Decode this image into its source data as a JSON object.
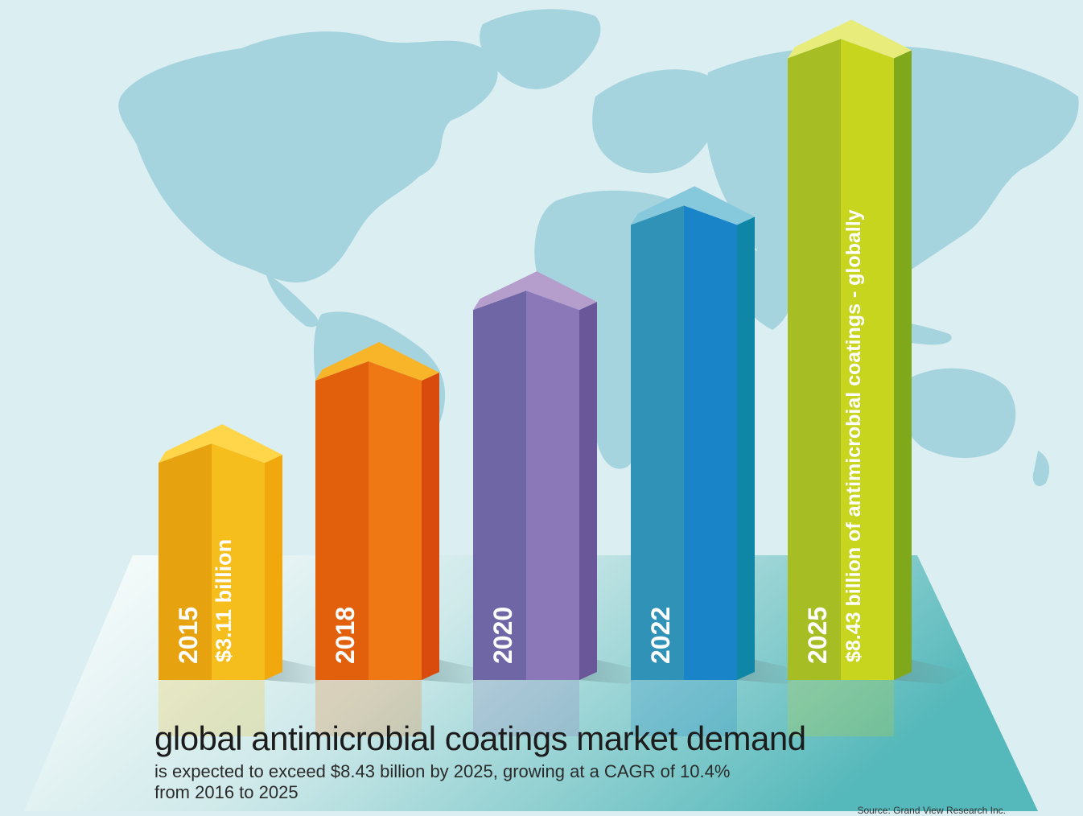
{
  "chart_data": {
    "type": "bar",
    "categories": [
      "2015",
      "2018",
      "2020",
      "2022",
      "2025"
    ],
    "values": [
      3.11,
      4.19,
      5.12,
      6.24,
      8.43
    ],
    "value_unit": "billion USD",
    "bar_labels": [
      "$3.11 billion",
      "",
      "",
      "",
      "$8.43 billion of antimicrobial coatings - globally"
    ],
    "colors": [
      {
        "front_left": "#e7a30f",
        "front_right": "#f6be1c",
        "side": "#f0a80c",
        "top": "#ffd64a"
      },
      {
        "front_left": "#e25f0c",
        "front_right": "#f07814",
        "side": "#d94b0d",
        "top": "#f8b52a"
      },
      {
        "front_left": "#6f66a6",
        "front_right": "#8b78b8",
        "side": "#6a5799",
        "top": "#b59dcc"
      },
      {
        "front_left": "#2f92b6",
        "front_right": "#1a84c8",
        "side": "#0f86a6",
        "top": "#86c8dc"
      },
      {
        "front_left": "#a6bd24",
        "front_right": "#c7d51e",
        "side": "#7fa91b",
        "top": "#e8ec7a"
      }
    ],
    "title": "",
    "xlabel": "",
    "ylabel": "",
    "grid": false,
    "legend": "none"
  },
  "caption": {
    "title": "global antimicrobial coatings market demand",
    "subtitle_line1": "is expected to exceed $8.43 billion by 2025, growing at a CAGR of 10.4%",
    "subtitle_line2": "from 2016 to 2025"
  },
  "source": "Source: Grand View Research Inc.",
  "colors": {
    "background": "#dbeef2",
    "map": "#a6d4de",
    "floor_left": "#f2f8f8",
    "floor_right": "#5bbcbe",
    "text": "#1c1c1c"
  }
}
